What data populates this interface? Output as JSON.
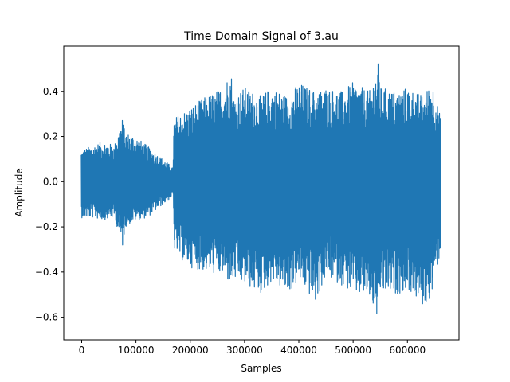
{
  "chart_data": {
    "type": "line",
    "title": "Time Domain Signal of 3.au",
    "xlabel": "Samples",
    "ylabel": "Amplitude",
    "xlim": [
      -33000,
      695000
    ],
    "ylim": [
      -0.7,
      0.6
    ],
    "x_ticks": [
      0,
      100000,
      200000,
      300000,
      400000,
      500000,
      600000
    ],
    "x_tick_labels": [
      "0",
      "100000",
      "200000",
      "300000",
      "400000",
      "500000",
      "600000"
    ],
    "y_ticks": [
      -0.6,
      -0.4,
      -0.2,
      0.0,
      0.2,
      0.4
    ],
    "y_tick_labels": [
      "−0.6",
      "−0.4",
      "−0.2",
      "0.0",
      "0.2",
      "0.4"
    ],
    "grid": false,
    "series": [
      {
        "color": "#1f77b4",
        "x_range": [
          0,
          661500
        ],
        "envelope": {
          "x": [
            0,
            20000,
            40000,
            60000,
            75000,
            80000,
            100000,
            120000,
            140000,
            160000,
            168000,
            170000,
            180000,
            200000,
            230000,
            260000,
            275000,
            280000,
            300000,
            330000,
            350000,
            380000,
            400000,
            430000,
            450000,
            480000,
            500000,
            530000,
            548000,
            550000,
            580000,
            600000,
            630000,
            645000,
            661500
          ],
          "upper": [
            0.14,
            0.16,
            0.18,
            0.16,
            0.28,
            0.22,
            0.2,
            0.16,
            0.12,
            0.08,
            0.06,
            0.28,
            0.3,
            0.33,
            0.38,
            0.42,
            0.5,
            0.38,
            0.42,
            0.38,
            0.42,
            0.38,
            0.44,
            0.4,
            0.42,
            0.4,
            0.44,
            0.4,
            0.54,
            0.42,
            0.4,
            0.42,
            0.38,
            0.45,
            0.28
          ],
          "lower": [
            -0.16,
            -0.16,
            -0.17,
            -0.16,
            -0.29,
            -0.2,
            -0.17,
            -0.16,
            -0.12,
            -0.08,
            -0.06,
            -0.3,
            -0.34,
            -0.38,
            -0.4,
            -0.42,
            -0.46,
            -0.44,
            -0.46,
            -0.5,
            -0.44,
            -0.5,
            -0.44,
            -0.54,
            -0.42,
            -0.46,
            -0.5,
            -0.52,
            -0.64,
            -0.5,
            -0.5,
            -0.48,
            -0.56,
            -0.5,
            -0.3
          ]
        }
      }
    ]
  }
}
